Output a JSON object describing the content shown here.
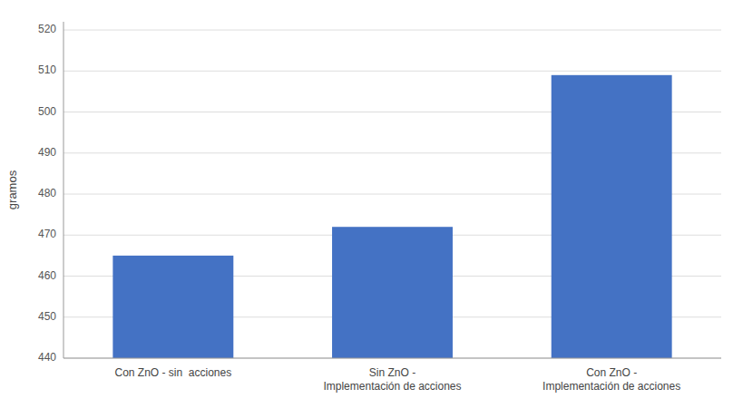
{
  "chart_data": {
    "type": "bar",
    "categories": [
      "Con ZnO - sin  acciones",
      "Sin ZnO -\nImplementación de acciones",
      "Con ZnO -\nImplementación de acciones"
    ],
    "values": [
      465,
      472,
      509
    ],
    "color": "#4472C4",
    "ylabel": "gramos",
    "ylim": [
      440,
      522
    ],
    "yticks": [
      440,
      450,
      460,
      470,
      480,
      490,
      500,
      510,
      520
    ],
    "grid": true
  }
}
